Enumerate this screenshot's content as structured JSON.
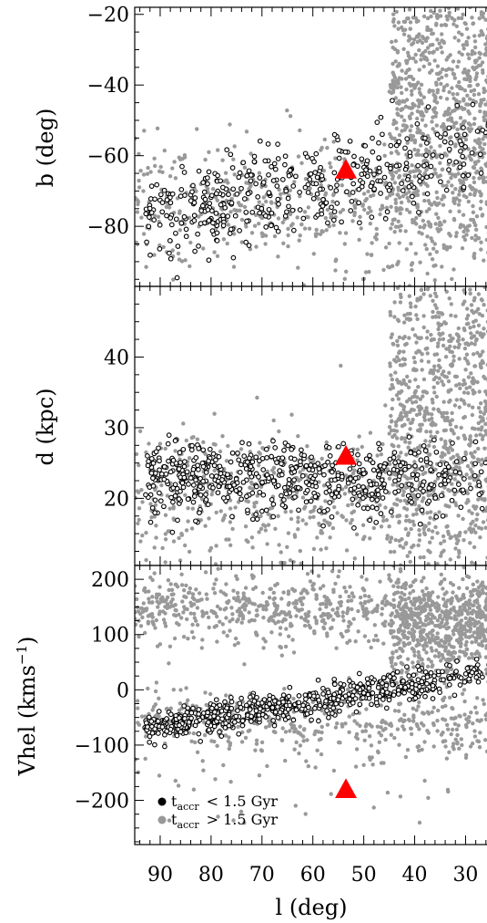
{
  "chart_data": [
    {
      "type": "scatter",
      "panel": "top",
      "ylabel": "b (deg)",
      "xlim": [
        95,
        24
      ],
      "ylim": [
        -97,
        -18
      ],
      "y_ticks": [
        -20,
        -40,
        -60,
        -80
      ],
      "y_tick_labels": [
        "−20",
        "−40",
        "−60",
        "−80"
      ],
      "series": [
        {
          "role": "old",
          "color": "#999999",
          "marker": "filled-dot",
          "clouds": [
            {
              "x_range": [
                24,
                95
              ],
              "y_center": -74,
              "y_spread": 9,
              "n": 520
            },
            {
              "x_range": [
                24,
                45
              ],
              "y_center": -45,
              "y_spread": 22,
              "n": 900
            }
          ]
        },
        {
          "role": "recent",
          "color": "#000000",
          "marker": "open-circle",
          "band": {
            "x_range": [
              24,
              93
            ],
            "y_start": -77,
            "y_end": -58,
            "y_spread": 6,
            "n": 420
          }
        }
      ],
      "marker_triangle": {
        "x": 53.5,
        "y": -64,
        "color": "#ff0000"
      }
    },
    {
      "type": "scatter",
      "panel": "middle",
      "ylabel": "d (kpc)",
      "xlim": [
        95,
        24
      ],
      "ylim": [
        10.5,
        50
      ],
      "y_ticks": [
        20,
        30,
        40
      ],
      "y_tick_labels": [
        "20",
        "30",
        "40"
      ],
      "series": [
        {
          "role": "old",
          "color": "#999999",
          "marker": "filled-dot",
          "clouds": [
            {
              "x_range": [
                24,
                95
              ],
              "y_center": 20,
              "y_spread": 5,
              "n": 600
            },
            {
              "x_range": [
                24,
                45
              ],
              "y_center": 36,
              "y_spread": 14,
              "n": 900
            }
          ]
        },
        {
          "role": "recent",
          "color": "#000000",
          "marker": "open-circle",
          "band": {
            "x_range": [
              24,
              93
            ],
            "y_start": 23,
            "y_end": 22.5,
            "y_spread": 2.5,
            "n": 600
          }
        }
      ],
      "marker_triangle": {
        "x": 53.5,
        "y": 26,
        "color": "#ff0000"
      }
    },
    {
      "type": "scatter",
      "panel": "bottom",
      "xlabel": "l (deg)",
      "ylabel_main": "Vhel (kms",
      "ylabel_sup": "−1",
      "ylabel_close": ")",
      "xlim": [
        95,
        24
      ],
      "ylim": [
        -280,
        225
      ],
      "x_ticks": [
        90,
        80,
        70,
        60,
        50,
        40,
        30
      ],
      "x_tick_labels": [
        "90",
        "80",
        "70",
        "60",
        "50",
        "40",
        "30"
      ],
      "y_ticks": [
        200,
        100,
        0,
        -100,
        -200
      ],
      "y_tick_labels": [
        "200",
        "100",
        "0",
        "−100",
        "−200"
      ],
      "series": [
        {
          "role": "old",
          "color": "#999999",
          "marker": "filled-dot",
          "clouds": [
            {
              "x_range": [
                24,
                95
              ],
              "y_center": 145,
              "y_spread": 30,
              "n": 700
            },
            {
              "x_range": [
                24,
                45
              ],
              "y_center": 100,
              "y_spread": 45,
              "n": 500
            },
            {
              "x_range": [
                24,
                95
              ],
              "y_center": -60,
              "y_spread": 30,
              "n": 420
            },
            {
              "x_range": [
                24,
                95
              ],
              "y_center": -150,
              "y_spread": 60,
              "n": 50
            }
          ]
        },
        {
          "role": "recent",
          "color": "#000000",
          "marker": "open-circle",
          "band": {
            "x_range": [
              24,
              93
            ],
            "y_start": -70,
            "y_end": 35,
            "y_spread": 13,
            "n": 620
          }
        }
      ],
      "marker_triangle": {
        "x": 53.5,
        "y": -180,
        "color": "#ff0000"
      }
    }
  ],
  "legend": {
    "placement": "bottom-left",
    "items": [
      {
        "color": "#000000",
        "t": "t",
        "sub": "accr",
        "rel": "< 1.5 Gyr"
      },
      {
        "color": "#999999",
        "t": "t",
        "sub": "accr",
        "rel": "> 1.5 Gyr"
      }
    ]
  },
  "colors": {
    "old": "#999999",
    "recent": "#000000",
    "progenitor": "#ff0000"
  }
}
